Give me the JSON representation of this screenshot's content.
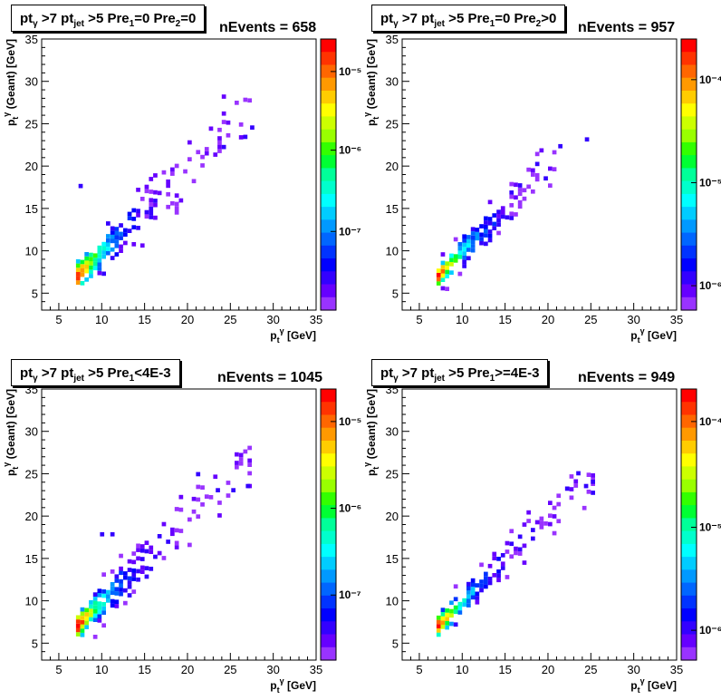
{
  "canvas": {
    "background": "#ffffff"
  },
  "chart_data": [
    {
      "type": "heatmap",
      "title_box": {
        "prefix": "pt",
        "sub1": "γ",
        "mid1": " >7  pt",
        "sub2": "jet",
        "mid2": " >5 Pre",
        "sub3": "1",
        "mid3": "=0 Pre",
        "sub4": "2",
        "tail": "=0"
      },
      "nevents_label": "nEvents = 658",
      "xlabel": "p_t^γ [GeV]",
      "ylabel": "p_t^γ (Geant) [GeV]",
      "xlim": [
        3,
        35
      ],
      "ylim": [
        3,
        35
      ],
      "xticks": [
        "5",
        "10",
        "15",
        "20",
        "25",
        "30",
        "35"
      ],
      "yticks": [
        "5",
        "10",
        "15",
        "20",
        "25",
        "30",
        "35"
      ],
      "palette_ticks": [
        {
          "label": "10⁻⁵",
          "frac": 0.12
        },
        {
          "label": "10⁻⁶",
          "frac": 0.41
        },
        {
          "label": "10⁻⁷",
          "frac": 0.71
        }
      ],
      "diagonal_spread": 1.1,
      "nbins_max": 27.3,
      "outliers": [
        [
          7.3,
          17.4
        ],
        [
          24.0,
          22.0
        ],
        [
          26.5,
          23.2
        ],
        [
          27.3,
          24.3
        ]
      ]
    },
    {
      "type": "heatmap",
      "title_box": {
        "prefix": "pt",
        "sub1": "γ",
        "mid1": " >7  pt",
        "sub2": "jet",
        "mid2": " >5 Pre",
        "sub3": "1",
        "mid3": "=0 Pre",
        "sub4": "2",
        "tail": ">0"
      },
      "nevents_label": "nEvents = 957",
      "xlabel": "p_t^γ [GeV]",
      "ylabel": "p_t^γ (Geant) [GeV]",
      "xlim": [
        3,
        35
      ],
      "ylim": [
        3,
        35
      ],
      "xticks": [
        "5",
        "10",
        "15",
        "20",
        "25",
        "30",
        "35"
      ],
      "yticks": [
        "5",
        "10",
        "15",
        "20",
        "25",
        "30",
        "35"
      ],
      "palette_ticks": [
        {
          "label": "10⁻⁴",
          "frac": 0.15
        },
        {
          "label": "10⁻⁵",
          "frac": 0.53
        },
        {
          "label": "10⁻⁶",
          "frac": 0.91
        }
      ],
      "diagonal_spread": 0.8,
      "nbins_max": 20.8,
      "outliers": [
        [
          21.2,
          22.1
        ],
        [
          24.3,
          22.9
        ],
        [
          18.5,
          20.0
        ],
        [
          19.5,
          18.3
        ]
      ]
    },
    {
      "type": "heatmap",
      "title_box": {
        "prefix": "pt",
        "sub1": "γ",
        "mid1": " >7  pt",
        "sub2": "jet",
        "mid2": " >5 Pre",
        "sub3": "1",
        "mid3": "<4E-3",
        "sub4": "",
        "tail": ""
      },
      "nevents_label": "nEvents = 1045",
      "xlabel": "p_t^γ [GeV]",
      "ylabel": "p_t^γ (Geant) [GeV]",
      "xlim": [
        3,
        35
      ],
      "ylim": [
        3,
        35
      ],
      "xticks": [
        "5",
        "10",
        "15",
        "20",
        "25",
        "30",
        "35"
      ],
      "yticks": [
        "5",
        "10",
        "15",
        "20",
        "25",
        "30",
        "35"
      ],
      "palette_ticks": [
        {
          "label": "10⁻⁵",
          "frac": 0.12
        },
        {
          "label": "10⁻⁶",
          "frac": 0.44
        },
        {
          "label": "10⁻⁷",
          "frac": 0.76
        }
      ],
      "diagonal_spread": 1.0,
      "nbins_max": 27.0,
      "outliers": [
        [
          9.8,
          17.6
        ],
        [
          11.0,
          17.6
        ],
        [
          21.0,
          24.7
        ],
        [
          23.3,
          22.8
        ],
        [
          25.1,
          22.8
        ],
        [
          26.8,
          23.3
        ]
      ]
    },
    {
      "type": "heatmap",
      "title_box": {
        "prefix": "pt",
        "sub1": "γ",
        "mid1": " >7  pt",
        "sub2": "jet",
        "mid2": " >5 Pre",
        "sub3": "1",
        "mid3": ">=4E-3",
        "sub4": "",
        "tail": ""
      },
      "nevents_label": "nEvents = 949",
      "xlabel": "p_t^γ [GeV]",
      "ylabel": "p_t^γ (Geant) [GeV]",
      "xlim": [
        3,
        35
      ],
      "ylim": [
        3,
        35
      ],
      "xticks": [
        "5",
        "10",
        "15",
        "20",
        "25",
        "30",
        "35"
      ],
      "yticks": [
        "5",
        "10",
        "15",
        "20",
        "25",
        "30",
        "35"
      ],
      "palette_ticks": [
        {
          "label": "10⁻⁴",
          "frac": 0.12
        },
        {
          "label": "10⁻⁵",
          "frac": 0.51
        },
        {
          "label": "10⁻⁶",
          "frac": 0.89
        }
      ],
      "diagonal_spread": 0.85,
      "nbins_max": 25.0,
      "outliers": [
        [
          23.3,
          24.8
        ],
        [
          24.2,
          23.3
        ],
        [
          25.0,
          23.8
        ],
        [
          25.0,
          22.5
        ],
        [
          22.0,
          23.0
        ]
      ]
    }
  ]
}
